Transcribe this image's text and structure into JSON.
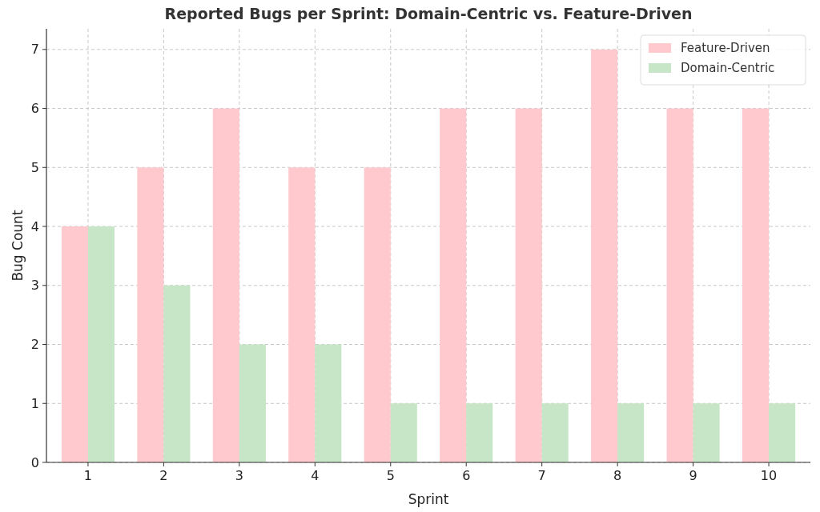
{
  "chart_data": {
    "type": "bar",
    "title": "Reported Bugs per Sprint: Domain-Centric vs. Feature-Driven",
    "xlabel": "Sprint",
    "ylabel": "Bug Count",
    "categories": [
      "1",
      "2",
      "3",
      "4",
      "5",
      "6",
      "7",
      "8",
      "9",
      "10"
    ],
    "series": [
      {
        "name": "Feature-Driven",
        "color": "#ffc9ce",
        "values": [
          4,
          5,
          6,
          5,
          5,
          6,
          6,
          7,
          6,
          6
        ]
      },
      {
        "name": "Domain-Centric",
        "color": "#c7e6c7",
        "values": [
          4,
          3,
          2,
          2,
          1,
          1,
          1,
          1,
          1,
          1
        ]
      }
    ],
    "ylim": [
      0,
      7.35
    ],
    "yticks": [
      0,
      1,
      2,
      3,
      4,
      5,
      6,
      7
    ],
    "grid": true,
    "legend": "top right"
  }
}
